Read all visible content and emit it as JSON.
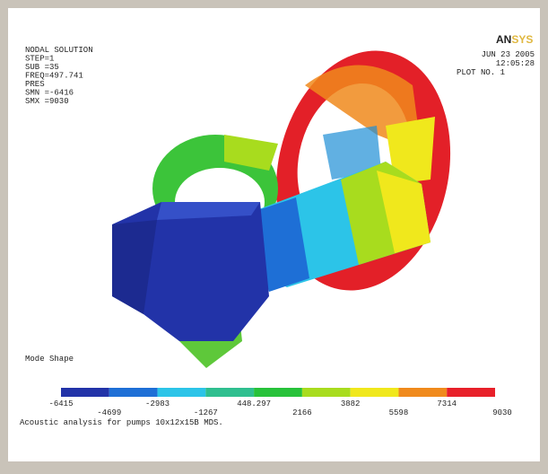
{
  "header": {
    "lines": [
      "NODAL SOLUTION",
      "STEP=1",
      "SUB =35",
      "FREQ=497.741",
      "PRES",
      "SMN =-6416",
      "SMX =9030"
    ]
  },
  "logo": {
    "left": "AN",
    "right": "SYS"
  },
  "stamp": {
    "date": "JUN 23 2005",
    "time": "12:05:28",
    "plot": "PLOT NO.  1"
  },
  "plot_label": "Mode Shape",
  "contour_legend": {
    "levels": [
      -6415,
      -4699,
      -2983,
      -1267,
      448.297,
      2166,
      3882,
      5598,
      7314,
      9030
    ],
    "colors": [
      "#2233a8",
      "#1e6fd6",
      "#2cc4e8",
      "#2fbf8f",
      "#27c23a",
      "#a8dc1e",
      "#f0e81c",
      "#f08a1c",
      "#e8202a"
    ]
  },
  "caption": "Acoustic analysis for pumps 10x12x15B MDS."
}
